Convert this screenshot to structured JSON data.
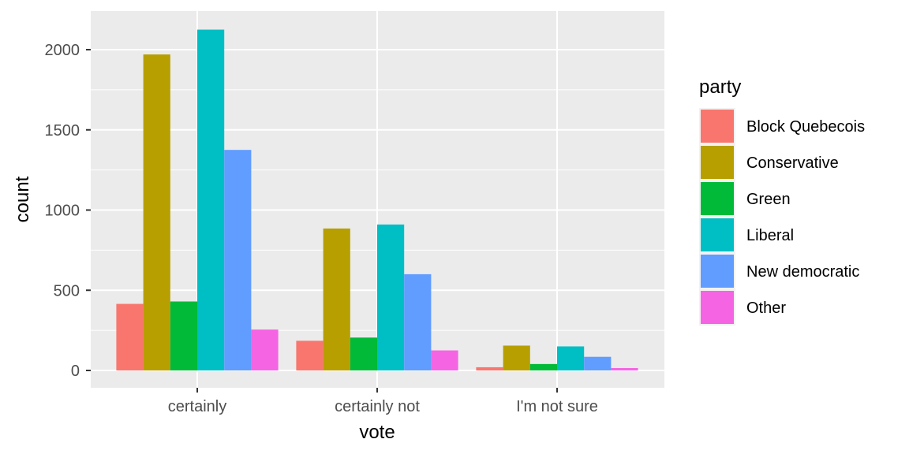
{
  "chart_data": {
    "type": "bar",
    "xlabel": "vote",
    "ylabel": "count",
    "ylim": [
      0,
      2200
    ],
    "yticks": [
      "0",
      "500",
      "1000",
      "1500",
      "2000"
    ],
    "grid": true,
    "legend_position": "right",
    "legend_title": "party",
    "categories": [
      "certainly",
      "certainly not",
      "I'm not sure"
    ],
    "series": [
      {
        "name": "Block Quebecois",
        "color": "#F8766D",
        "values": [
          415,
          185,
          20
        ]
      },
      {
        "name": "Conservative",
        "color": "#B79F00",
        "values": [
          1970,
          885,
          155
        ]
      },
      {
        "name": "Green",
        "color": "#00BA38",
        "values": [
          430,
          205,
          40
        ]
      },
      {
        "name": "Liberal",
        "color": "#00BFC4",
        "values": [
          2125,
          910,
          150
        ]
      },
      {
        "name": "New democratic",
        "color": "#619CFF",
        "values": [
          1375,
          600,
          85
        ]
      },
      {
        "name": "Other",
        "color": "#F564E3",
        "values": [
          255,
          125,
          15
        ]
      }
    ]
  }
}
